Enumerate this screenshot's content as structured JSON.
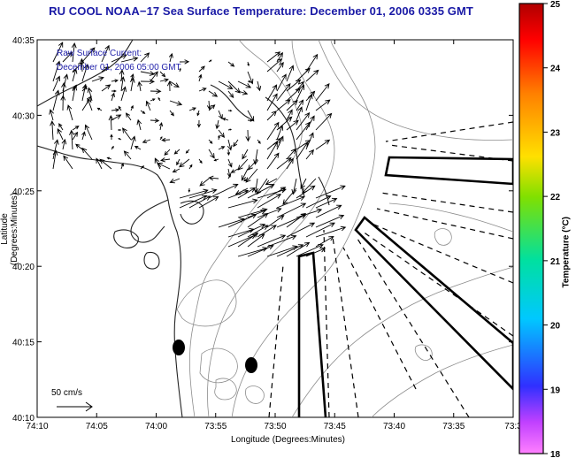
{
  "title": "RU COOL  NOAA−17  Sea Surface Temperature:  December 01, 2006 0335 GMT",
  "current_label": {
    "line1": "Raw Surface Current:",
    "line2": "December 01, 2006 05:00 GMT"
  },
  "scale_label": "50 cm/s",
  "axes": {
    "xlabel": "Longitude (Degrees:Minutes)",
    "ylabel": "Latitude (Degrees:Minutes)",
    "x_ticks": [
      "74:10",
      "74:05",
      "74:00",
      "73:55",
      "73:50",
      "73:45",
      "73:40",
      "73:35",
      "73:3"
    ],
    "y_ticks": [
      "40:35",
      "40:30",
      "40:25",
      "40:20",
      "40:15",
      "40:10"
    ]
  },
  "colorbar": {
    "label": "Temperature (°C)",
    "ticks": [
      "25",
      "24",
      "23",
      "22",
      "21",
      "20",
      "19",
      "18"
    ],
    "min": 18,
    "max": 25
  },
  "colors": {
    "title": "#1a1aa6",
    "label": "#2222aa",
    "coast": "#222222",
    "contour": "#8c8c8c"
  }
}
